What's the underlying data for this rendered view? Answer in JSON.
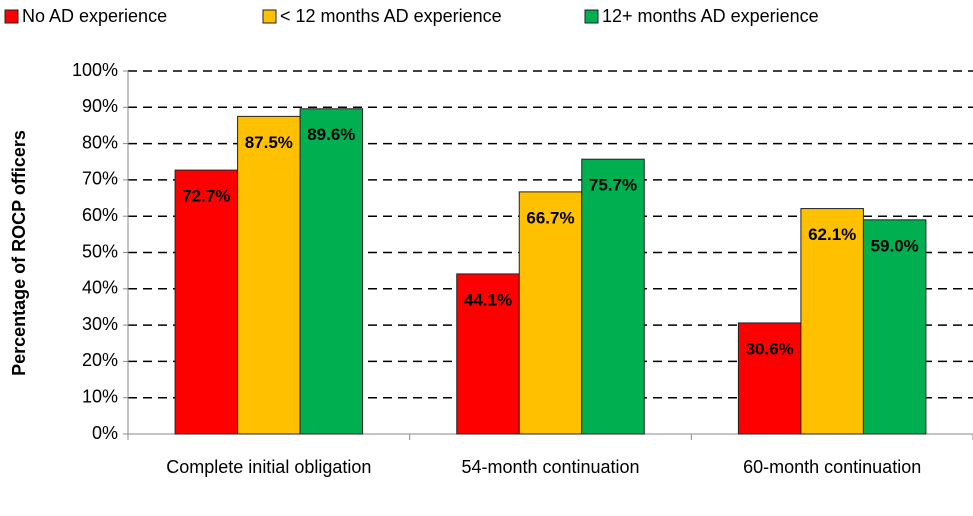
{
  "chart_data": {
    "type": "bar",
    "y_label": "Percentage of ROCP officers",
    "categories": [
      "Complete initial obligation",
      "54-month continuation",
      "60-month continuation"
    ],
    "series": [
      {
        "name": "No AD experience",
        "color": "#ff0000",
        "values": [
          72.7,
          44.1,
          30.6
        ],
        "value_labels": [
          "72.7%",
          "44.1%",
          "30.6%"
        ]
      },
      {
        "name": "< 12 months AD experience",
        "color": "#ffc000",
        "values": [
          87.5,
          66.7,
          62.1
        ],
        "value_labels": [
          "87.5%",
          "66.7%",
          "62.1%"
        ]
      },
      {
        "name": "12+ months AD experience",
        "color": "#00b050",
        "values": [
          89.6,
          75.7,
          59.0
        ],
        "value_labels": [
          "89.6%",
          "75.7%",
          "59.0%"
        ]
      }
    ],
    "ylim": [
      0,
      100
    ],
    "yticks": [
      {
        "value": 0,
        "label": "0%"
      },
      {
        "value": 10,
        "label": "10%"
      },
      {
        "value": 20,
        "label": "20%"
      },
      {
        "value": 30,
        "label": "30%"
      },
      {
        "value": 40,
        "label": "40%"
      },
      {
        "value": 50,
        "label": "50%"
      },
      {
        "value": 60,
        "label": "60%"
      },
      {
        "value": 70,
        "label": "70%"
      },
      {
        "value": 80,
        "label": "80%"
      },
      {
        "value": 90,
        "label": "90%"
      },
      {
        "value": 100,
        "label": "100%"
      }
    ],
    "grid": true,
    "legend": "top"
  }
}
